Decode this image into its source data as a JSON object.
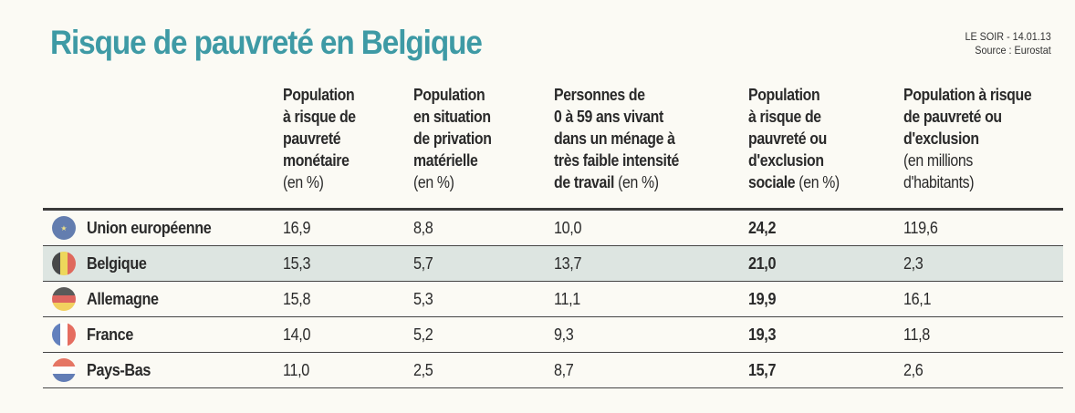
{
  "title": "Risque de pauvreté en Belgique",
  "source_line1": "LE SOIR - 14.01.13",
  "source_line2": "Source : Eurostat",
  "headers": [
    {
      "bold": "Population\nà risque de\npauvreté\nmonétaire",
      "normal": "\n(en %)"
    },
    {
      "bold": "Population\nen situation\nde privation\nmatérielle",
      "normal": "\n(en %)"
    },
    {
      "bold": "Personnes de\n0 à 59 ans vivant\ndans un ménage à\ntrès faible intensité\nde travail",
      "normal": " (en %)"
    },
    {
      "bold": "Population\nà risque de\npauvreté ou\nd'exclusion\nsociale",
      "normal": " (en %)"
    },
    {
      "bold": "Population à risque\nde pauvreté ou\nd'exclusion",
      "normal": "\n(en millions\nd'habitants)"
    }
  ],
  "rows": [
    {
      "country": "Union européenne",
      "flag": "eu-flag-icon",
      "values": [
        "16,9",
        "8,8",
        "10,0",
        "24,2",
        "119,6"
      ]
    },
    {
      "country": "Belgique",
      "flag": "belgium-flag-icon",
      "values": [
        "15,3",
        "5,7",
        "13,7",
        "21,0",
        "2,3"
      ]
    },
    {
      "country": "Allemagne",
      "flag": "germany-flag-icon",
      "values": [
        "15,8",
        "5,3",
        "11,1",
        "19,9",
        "16,1"
      ]
    },
    {
      "country": "France",
      "flag": "france-flag-icon",
      "values": [
        "14,0",
        "5,2",
        "9,3",
        "19,3",
        "11,8"
      ]
    },
    {
      "country": "Pays-Bas",
      "flag": "netherlands-flag-icon",
      "values": [
        "11,0",
        "2,5",
        "8,7",
        "15,7",
        "2,6"
      ]
    }
  ],
  "colors": {
    "title": "#3e9aa5",
    "highlight_row": "#dde5e1"
  },
  "chart_data": {
    "type": "table",
    "title": "Risque de pauvreté en Belgique",
    "columns": [
      "Population à risque de pauvreté monétaire (en %)",
      "Population en situation de privation matérielle (en %)",
      "Personnes de 0 à 59 ans vivant dans un ménage à très faible intensité de travail (en %)",
      "Population à risque de pauvreté ou d'exclusion sociale (en %)",
      "Population à risque de pauvreté ou d'exclusion (en millions d'habitants)"
    ],
    "categories": [
      "Union européenne",
      "Belgique",
      "Allemagne",
      "France",
      "Pays-Bas"
    ],
    "values": [
      [
        16.9,
        8.8,
        10.0,
        24.2,
        119.6
      ],
      [
        15.3,
        5.7,
        13.7,
        21.0,
        2.3
      ],
      [
        15.8,
        5.3,
        11.1,
        19.9,
        16.1
      ],
      [
        14.0,
        5.2,
        9.3,
        19.3,
        11.8
      ],
      [
        11.0,
        2.5,
        8.7,
        15.7,
        2.6
      ]
    ]
  }
}
